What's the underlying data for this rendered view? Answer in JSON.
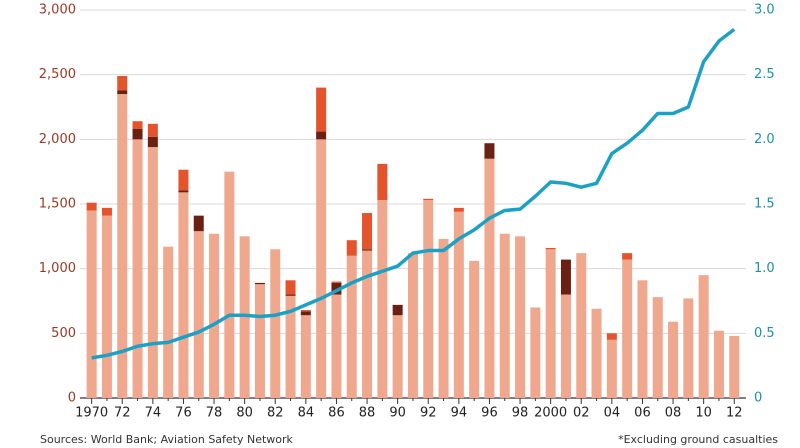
{
  "chart_data": {
    "type": "bar",
    "stacked": true,
    "categories": [
      "1970",
      null,
      "72",
      null,
      "74",
      null,
      "76",
      null,
      "78",
      null,
      "80",
      null,
      "82",
      null,
      "84",
      null,
      "86",
      null,
      "88",
      null,
      "90",
      null,
      "92",
      null,
      "94",
      null,
      "96",
      null,
      "98",
      null,
      "2000",
      null,
      "02",
      null,
      "04",
      null,
      "06",
      null,
      "08",
      null,
      "10",
      null,
      "12"
    ],
    "series": [
      {
        "color": "#efa88e",
        "values": [
          1450,
          1410,
          2350,
          2000,
          1940,
          1170,
          1590,
          1290,
          1270,
          1750,
          1250,
          880,
          1150,
          790,
          640,
          2000,
          800,
          1100,
          1140,
          1530,
          640,
          1120,
          1530,
          1230,
          1440,
          1060,
          1850,
          1270,
          1250,
          700,
          1150,
          800,
          1120,
          690,
          450,
          1070,
          910,
          780,
          590,
          770,
          950,
          520,
          480
        ]
      },
      {
        "color": "#6b2014",
        "values": [
          0,
          0,
          30,
          80,
          80,
          0,
          15,
          120,
          0,
          0,
          0,
          10,
          0,
          10,
          30,
          60,
          90,
          0,
          10,
          0,
          80,
          0,
          0,
          0,
          0,
          0,
          120,
          0,
          0,
          0,
          0,
          270,
          0,
          0,
          0,
          0,
          0,
          0,
          0,
          0,
          0,
          0,
          0
        ]
      },
      {
        "color": "#e5532c",
        "values": [
          60,
          60,
          110,
          60,
          100,
          0,
          160,
          0,
          0,
          0,
          0,
          0,
          0,
          110,
          10,
          340,
          10,
          120,
          280,
          280,
          0,
          0,
          10,
          0,
          30,
          0,
          0,
          0,
          0,
          0,
          10,
          0,
          0,
          0,
          50,
          50,
          0,
          0,
          0,
          0,
          0,
          0,
          0
        ]
      },
      {
        "type": "line",
        "axis": "y2",
        "color": "#1ba1c5",
        "values": [
          0.31,
          0.33,
          0.36,
          0.4,
          0.42,
          0.43,
          0.47,
          0.51,
          0.57,
          0.64,
          0.64,
          0.63,
          0.64,
          0.67,
          0.72,
          0.77,
          0.83,
          0.89,
          0.94,
          0.98,
          1.02,
          1.12,
          1.14,
          1.14,
          1.23,
          1.3,
          1.39,
          1.45,
          1.46,
          1.56,
          1.67,
          1.66,
          1.63,
          1.66,
          1.89,
          1.97,
          2.07,
          2.2,
          2.2,
          2.25,
          2.6,
          2.76,
          2.85
        ]
      }
    ],
    "ylim": [
      0,
      3000
    ],
    "yticks": [
      0,
      500,
      {
        "value": 1000,
        "label": "1,000"
      },
      {
        "value": 1500,
        "label": "1,500"
      },
      {
        "value": 2000,
        "label": "2,000"
      },
      {
        "value": 2500,
        "label": "2,500"
      },
      {
        "value": 3000,
        "label": "3,000"
      }
    ],
    "y2lim": [
      0,
      3
    ],
    "y2ticks": [
      0,
      0.5,
      {
        "value": 1,
        "label": "1.0"
      },
      1.5,
      {
        "value": 2,
        "label": "2.0"
      },
      2.5,
      {
        "value": 3,
        "label": "3.0"
      }
    ],
    "grid": true,
    "source": "Sources: World Bank; Aviation Safety Network",
    "note": "*Excluding ground casualties"
  }
}
